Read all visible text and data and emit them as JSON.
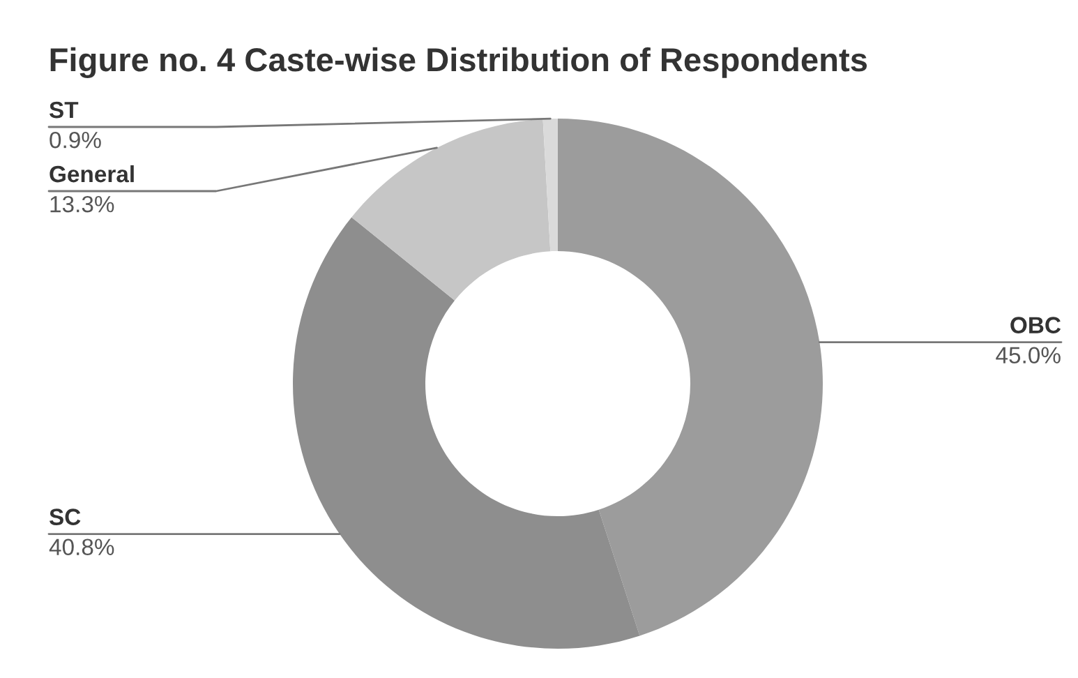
{
  "chart_data": {
    "type": "donut",
    "title": "Figure no. 4 Caste-wise Distribution of Respondents",
    "categories": [
      "OBC",
      "SC",
      "General",
      "ST"
    ],
    "values": [
      45.0,
      40.8,
      13.3,
      0.9
    ],
    "value_labels": [
      "45.0%",
      "40.8%",
      "13.3%",
      "0.9%"
    ],
    "colors": [
      "#9c9c9c",
      "#8e8e8e",
      "#c6c6c6",
      "#dadada"
    ]
  }
}
